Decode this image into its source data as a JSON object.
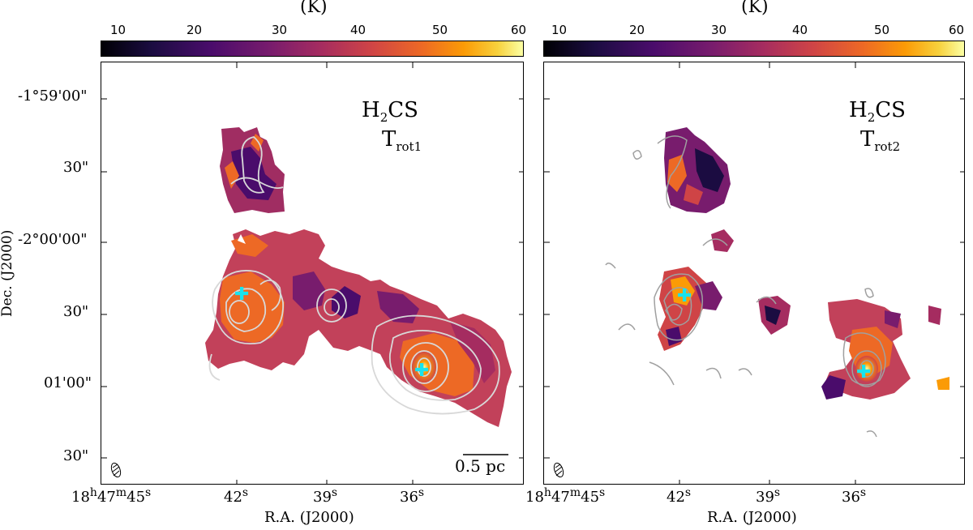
{
  "colorbar": {
    "unit": "(K)",
    "ticks": [
      "10",
      "20",
      "30",
      "40",
      "50",
      "60"
    ]
  },
  "panels": [
    {
      "molecule": "H",
      "molecule_sub": "2",
      "molecule_rest": "CS",
      "quantity": "T",
      "quantity_sub": "rot1",
      "scalebar": "0.5 pc"
    },
    {
      "molecule": "H",
      "molecule_sub": "2",
      "molecule_rest": "CS",
      "quantity": "T",
      "quantity_sub": "rot2"
    }
  ],
  "yaxis": {
    "title": "Dec. (J2000)",
    "ticks": [
      "-1°59'00\"",
      "30\"",
      "-2°00'00\"",
      "30\"",
      "01'00\"",
      "30\""
    ]
  },
  "xaxis": {
    "title": "R.A. (J2000)",
    "ticks": [
      {
        "h": "18",
        "m": "47",
        "s": "45"
      },
      {
        "s": "42"
      },
      {
        "s": "39"
      },
      {
        "s": "36"
      }
    ]
  },
  "sup": {
    "h": "h",
    "m": "m",
    "s": "s"
  },
  "colors": {
    "marker": "#18e4ee",
    "contour_left": "#d8d8d8",
    "contour_right": "#a0a0a0"
  }
}
